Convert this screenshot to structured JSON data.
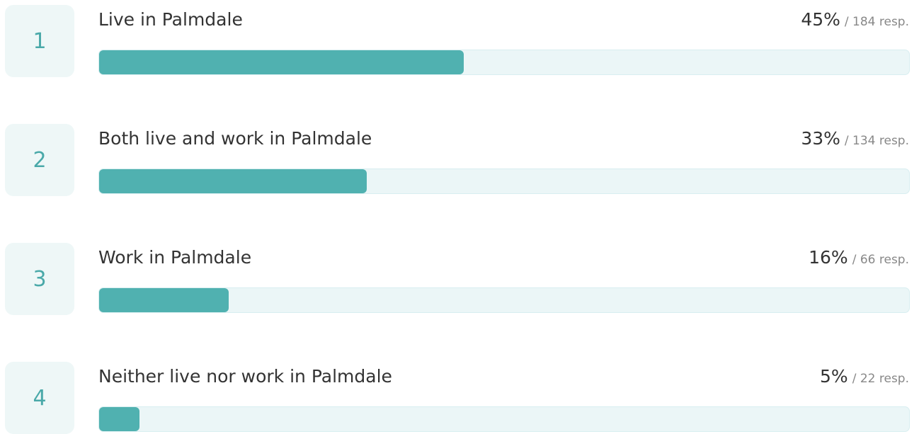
{
  "items": [
    {
      "rank": 1,
      "label": "Live in Palmdale",
      "percent": 45,
      "percent_label": "45%",
      "responses_label": "/ 184 resp."
    },
    {
      "rank": 2,
      "label": "Both live and work in Palmdale",
      "percent": 33,
      "percent_label": "33%",
      "responses_label": "/ 134 resp."
    },
    {
      "rank": 3,
      "label": "Work in Palmdale",
      "percent": 16,
      "percent_label": "16%",
      "responses_label": "/ 66 resp."
    },
    {
      "rank": 4,
      "label": "Neither live nor work in Palmdale",
      "percent": 5,
      "percent_label": "5%",
      "responses_label": "/ 22 resp."
    }
  ]
}
